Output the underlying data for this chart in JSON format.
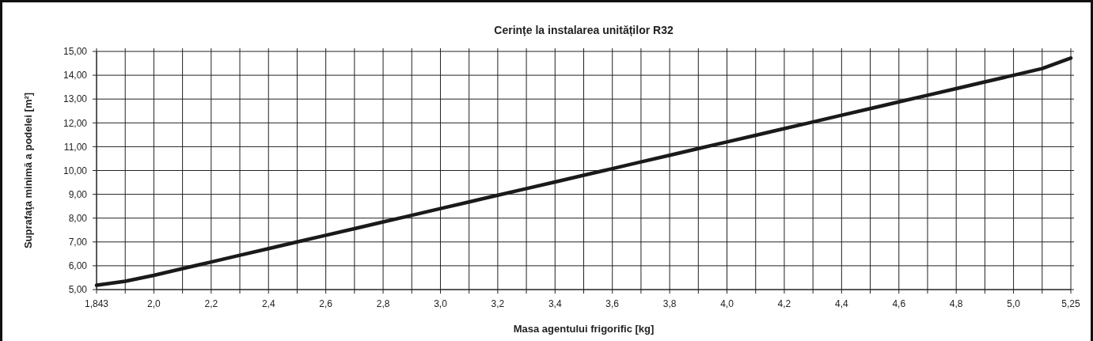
{
  "chart_data": {
    "type": "line",
    "title": "Cerințe la instalarea unităților R32",
    "xlabel": "Masa agentului frigorific [kg]",
    "ylabel": "Suprafaţa minimă a podelei [m²]",
    "categories": [
      "1,843",
      null,
      "2,0",
      null,
      "2,2",
      null,
      "2,4",
      null,
      "2,6",
      null,
      "2,8",
      null,
      "3,0",
      null,
      "3,2",
      null,
      "3,4",
      null,
      "3,6",
      null,
      "3,8",
      null,
      "4,0",
      null,
      "4,2",
      null,
      "4,4",
      null,
      "4,6",
      null,
      "4,8",
      null,
      "5,0",
      null,
      "5,25"
    ],
    "series": [
      {
        "color": "#1a1a1a",
        "values": [
          5.18,
          5.35,
          5.6,
          5.88,
          6.16,
          6.44,
          6.72,
          7.0,
          7.28,
          7.56,
          7.84,
          8.12,
          8.4,
          8.68,
          8.96,
          9.24,
          9.52,
          9.8,
          10.08,
          10.36,
          10.64,
          10.92,
          11.2,
          11.48,
          11.76,
          12.04,
          12.32,
          12.6,
          12.88,
          13.16,
          13.44,
          13.72,
          14.0,
          14.28,
          14.72
        ]
      }
    ],
    "ylim": [
      5,
      15
    ],
    "yticks": [
      {
        "value": 5,
        "label": "5,00"
      },
      {
        "value": 6,
        "label": "6,00"
      },
      {
        "value": 7,
        "label": "7,00"
      },
      {
        "value": 8,
        "label": "8,00"
      },
      {
        "value": 9,
        "label": "9,00"
      },
      {
        "value": 10,
        "label": "10,00"
      },
      {
        "value": 11,
        "label": "11,00"
      },
      {
        "value": 12,
        "label": "12,00"
      },
      {
        "value": 13,
        "label": "13,00"
      },
      {
        "value": 14,
        "label": "14,00"
      },
      {
        "value": 15,
        "label": "15,00"
      }
    ],
    "grid": true
  }
}
